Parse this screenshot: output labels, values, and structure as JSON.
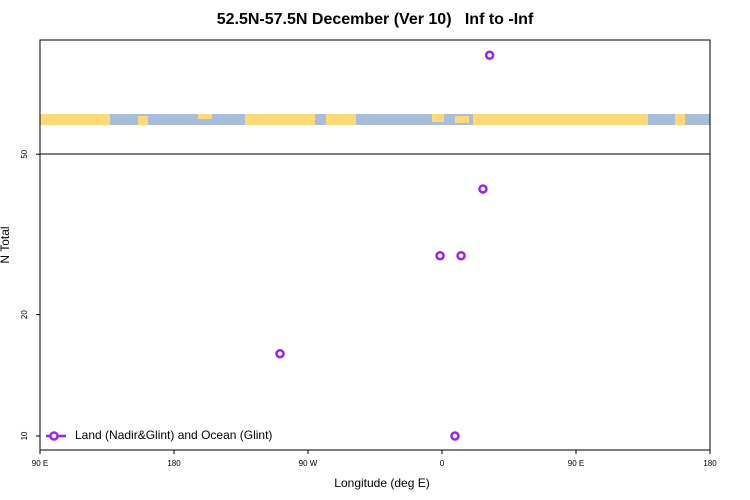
{
  "chart_data": {
    "type": "scatter",
    "title": "52.5N-57.5N December (Ver 10)   Inf to -Inf",
    "x_label": "Longitude (deg E)",
    "y_label": "N Total",
    "log_y": true,
    "xlim": [
      90,
      540
    ],
    "ylim": [
      9.23,
      96
    ],
    "xticks": [
      {
        "value": 90,
        "label": "90 E"
      },
      {
        "value": 180,
        "label": "180"
      },
      {
        "value": 270,
        "label": "90 W"
      },
      {
        "value": 360,
        "label": "0"
      },
      {
        "value": 450,
        "label": "90 E"
      },
      {
        "value": 540,
        "label": "180"
      }
    ],
    "yticks": [
      10,
      20,
      50
    ],
    "legend": "bottom-left",
    "series": [
      {
        "name": "Land (Nadir&Glint) and Ocean (Glint)",
        "color": "#a020f0",
        "x": [
          392,
          387.5,
          358.7,
          372.8,
          251.2,
          368.7
        ],
        "values": [
          88,
          41,
          28,
          28,
          16,
          10
        ]
      }
    ]
  }
}
